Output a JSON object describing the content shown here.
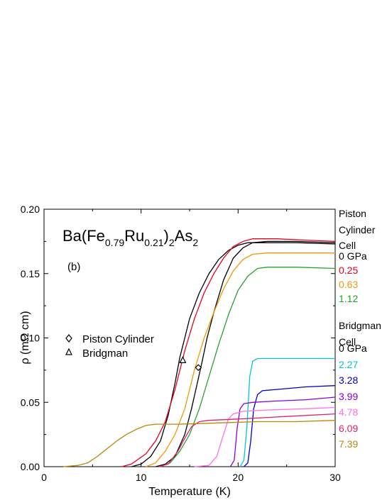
{
  "chart_data": {
    "type": "line",
    "title": "",
    "formula": {
      "base1": "Ba(Fe",
      "sub1": "0.79",
      "base2": "Ru",
      "sub2": "0.21",
      "base3": ")",
      "sub3": "2",
      "base4": "As",
      "sub4": "2"
    },
    "panel_label": "(b)",
    "xlabel": "Temperature (K)",
    "ylabel": "ρ (mΩ cm)",
    "xlim": [
      0,
      30
    ],
    "ylim": [
      0,
      0.2
    ],
    "xticks": [
      "0",
      "10",
      "20",
      "30"
    ],
    "yticks": [
      "0.00",
      "0.05",
      "0.10",
      "0.15",
      "0.20"
    ],
    "legend": [
      {
        "label": "Piston Cylinder",
        "marker": "diamond"
      },
      {
        "label": "Bridgman",
        "marker": "triangle"
      }
    ],
    "piston_header": [
      "Piston",
      "Cylinder",
      "Cell"
    ],
    "bridgman_header": [
      "Bridgman",
      "Cell"
    ],
    "series": [
      {
        "name": "0 GPa",
        "group": "piston",
        "color": "#000000",
        "points": [
          [
            9.0,
            0.0
          ],
          [
            10.0,
            0.002
          ],
          [
            11.0,
            0.008
          ],
          [
            12.0,
            0.02
          ],
          [
            12.8,
            0.04
          ],
          [
            13.5,
            0.065
          ],
          [
            14.0,
            0.085
          ],
          [
            14.5,
            0.1
          ],
          [
            15.0,
            0.115
          ],
          [
            16.0,
            0.135
          ],
          [
            17.0,
            0.15
          ],
          [
            18.0,
            0.161
          ],
          [
            19.0,
            0.168
          ],
          [
            20.0,
            0.172
          ],
          [
            21.0,
            0.174
          ],
          [
            23.0,
            0.174
          ],
          [
            26.0,
            0.174
          ],
          [
            30.0,
            0.173
          ]
        ]
      },
      {
        "name": "0 GPa",
        "group": "piston",
        "color": "#000000",
        "points": [
          [
            11.5,
            0.0
          ],
          [
            12.5,
            0.002
          ],
          [
            13.5,
            0.008
          ],
          [
            14.5,
            0.025
          ],
          [
            15.2,
            0.045
          ],
          [
            15.8,
            0.065
          ],
          [
            16.3,
            0.082
          ],
          [
            16.8,
            0.1
          ],
          [
            17.5,
            0.12
          ],
          [
            18.5,
            0.145
          ],
          [
            19.5,
            0.162
          ],
          [
            20.5,
            0.17
          ],
          [
            21.5,
            0.174
          ],
          [
            23.0,
            0.175
          ],
          [
            26.0,
            0.175
          ],
          [
            30.0,
            0.174
          ]
        ]
      },
      {
        "name": "0.25",
        "group": "piston",
        "color": "#e8001c",
        "points": [
          [
            8.0,
            0.0
          ],
          [
            9.0,
            0.002
          ],
          [
            10.5,
            0.01
          ],
          [
            11.5,
            0.02
          ],
          [
            12.5,
            0.035
          ],
          [
            13.5,
            0.06
          ],
          [
            14.5,
            0.09
          ],
          [
            15.5,
            0.115
          ],
          [
            16.5,
            0.135
          ],
          [
            17.5,
            0.15
          ],
          [
            18.5,
            0.162
          ],
          [
            19.5,
            0.171
          ],
          [
            20.5,
            0.175
          ],
          [
            21.5,
            0.177
          ],
          [
            24.0,
            0.177
          ],
          [
            27.0,
            0.176
          ],
          [
            30.0,
            0.175
          ]
        ]
      },
      {
        "name": "0.63",
        "group": "piston",
        "color": "#f5960a",
        "points": [
          [
            10.5,
            0.0
          ],
          [
            11.5,
            0.003
          ],
          [
            12.5,
            0.012
          ],
          [
            13.5,
            0.025
          ],
          [
            14.5,
            0.045
          ],
          [
            15.5,
            0.075
          ],
          [
            16.5,
            0.1
          ],
          [
            17.5,
            0.12
          ],
          [
            18.5,
            0.138
          ],
          [
            19.5,
            0.152
          ],
          [
            20.5,
            0.161
          ],
          [
            21.5,
            0.165
          ],
          [
            23.0,
            0.166
          ],
          [
            26.0,
            0.166
          ],
          [
            30.0,
            0.166
          ]
        ]
      },
      {
        "name": "1.12",
        "group": "piston",
        "color": "#2ca02c",
        "points": [
          [
            12.0,
            0.0
          ],
          [
            13.0,
            0.003
          ],
          [
            14.0,
            0.012
          ],
          [
            15.0,
            0.025
          ],
          [
            16.0,
            0.045
          ],
          [
            17.0,
            0.07
          ],
          [
            18.0,
            0.095
          ],
          [
            19.0,
            0.118
          ],
          [
            20.0,
            0.137
          ],
          [
            21.0,
            0.148
          ],
          [
            22.0,
            0.154
          ],
          [
            23.0,
            0.155
          ],
          [
            26.0,
            0.155
          ],
          [
            30.0,
            0.154
          ]
        ]
      },
      {
        "name": "0 GPa",
        "group": "bridgman",
        "color": "#000000",
        "points": []
      },
      {
        "name": "2.27",
        "group": "bridgman",
        "color": "#00c8d2",
        "points": [
          [
            20.2,
            0.0
          ],
          [
            20.6,
            0.005
          ],
          [
            20.9,
            0.03
          ],
          [
            21.2,
            0.07
          ],
          [
            21.5,
            0.082
          ],
          [
            22.0,
            0.084
          ],
          [
            25.0,
            0.084
          ],
          [
            30.0,
            0.084
          ]
        ]
      },
      {
        "name": "3.28",
        "group": "bridgman",
        "color": "#0000cc",
        "points": [
          [
            20.6,
            0.0
          ],
          [
            21.0,
            0.003
          ],
          [
            21.3,
            0.02
          ],
          [
            21.6,
            0.045
          ],
          [
            22.0,
            0.056
          ],
          [
            22.5,
            0.059
          ],
          [
            24.0,
            0.06
          ],
          [
            27.0,
            0.062
          ],
          [
            30.0,
            0.063
          ]
        ]
      },
      {
        "name": "3.99",
        "group": "bridgman",
        "color": "#8a00e6",
        "points": [
          [
            19.2,
            0.0
          ],
          [
            19.6,
            0.005
          ],
          [
            19.9,
            0.03
          ],
          [
            20.2,
            0.045
          ],
          [
            20.6,
            0.049
          ],
          [
            21.5,
            0.05
          ],
          [
            24.0,
            0.051
          ],
          [
            27.0,
            0.052
          ],
          [
            30.0,
            0.054
          ]
        ]
      },
      {
        "name": "4.78",
        "group": "bridgman",
        "color": "#ff70e8",
        "points": [
          [
            15.5,
            0.0
          ],
          [
            17.0,
            0.001
          ],
          [
            17.8,
            0.008
          ],
          [
            18.5,
            0.025
          ],
          [
            19.0,
            0.037
          ],
          [
            19.5,
            0.041
          ],
          [
            20.5,
            0.043
          ],
          [
            23.0,
            0.044
          ],
          [
            27.0,
            0.045
          ],
          [
            30.0,
            0.046
          ]
        ]
      },
      {
        "name": "6.09",
        "group": "bridgman",
        "color": "#e0206a",
        "points": [
          [
            11.8,
            0.0
          ],
          [
            12.8,
            0.002
          ],
          [
            13.8,
            0.012
          ],
          [
            14.5,
            0.022
          ],
          [
            15.2,
            0.031
          ],
          [
            16.0,
            0.035
          ],
          [
            17.0,
            0.036
          ],
          [
            20.0,
            0.037
          ],
          [
            25.0,
            0.039
          ],
          [
            30.0,
            0.041
          ]
        ]
      },
      {
        "name": "7.39",
        "group": "bridgman",
        "color": "#b8860b",
        "points": [
          [
            2.0,
            0.0
          ],
          [
            3.5,
            0.001
          ],
          [
            4.5,
            0.003
          ],
          [
            5.5,
            0.008
          ],
          [
            6.5,
            0.014
          ],
          [
            7.5,
            0.02
          ],
          [
            8.5,
            0.025
          ],
          [
            9.5,
            0.029
          ],
          [
            10.5,
            0.032
          ],
          [
            11.5,
            0.033
          ],
          [
            14.0,
            0.033
          ],
          [
            18.0,
            0.034
          ],
          [
            22.0,
            0.035
          ],
          [
            26.0,
            0.035
          ],
          [
            30.0,
            0.036
          ]
        ]
      }
    ],
    "markers": [
      {
        "type": "diamond",
        "x": 15.9,
        "y": 0.077
      },
      {
        "type": "triangle",
        "x": 14.3,
        "y": 0.083
      }
    ]
  }
}
